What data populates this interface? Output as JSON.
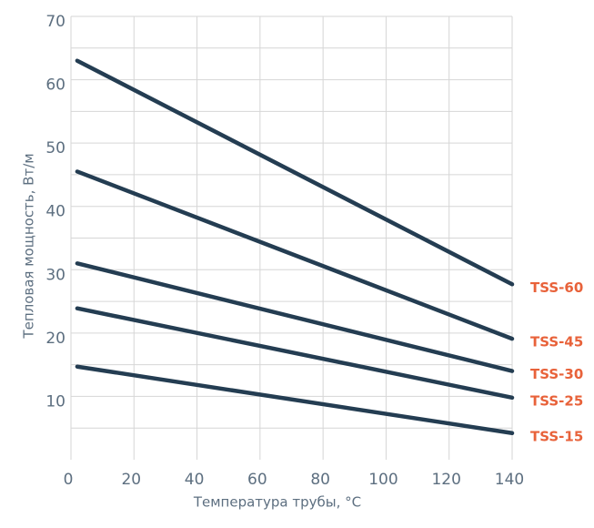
{
  "chart_data": {
    "type": "line",
    "x_label": "Температура трубы, °C",
    "y_label": "Тепловая мощность, Вт/м",
    "x": [
      2,
      140
    ],
    "series": [
      {
        "name": "TSS-60",
        "color": "#243d52",
        "values": [
          63,
          27.7
        ]
      },
      {
        "name": "TSS-45",
        "color": "#243d52",
        "values": [
          45.5,
          19.1
        ]
      },
      {
        "name": "TSS-30",
        "color": "#243d52",
        "values": [
          31,
          14
        ]
      },
      {
        "name": "TSS-25",
        "color": "#243d52",
        "values": [
          23.9,
          9.8
        ]
      },
      {
        "name": "TSS-15",
        "color": "#243d52",
        "values": [
          14.7,
          4.2
        ]
      }
    ],
    "legend_color": "#e8623a",
    "xlim": [
      0,
      140
    ],
    "xticks": [
      0,
      20,
      40,
      60,
      80,
      100,
      120,
      140
    ],
    "ylim": [
      0,
      70
    ],
    "yticks": [
      10,
      20,
      30,
      40,
      50,
      60,
      70
    ],
    "minor_yticks": [
      5,
      15,
      25,
      35,
      45,
      55,
      65
    ],
    "grid": true
  }
}
